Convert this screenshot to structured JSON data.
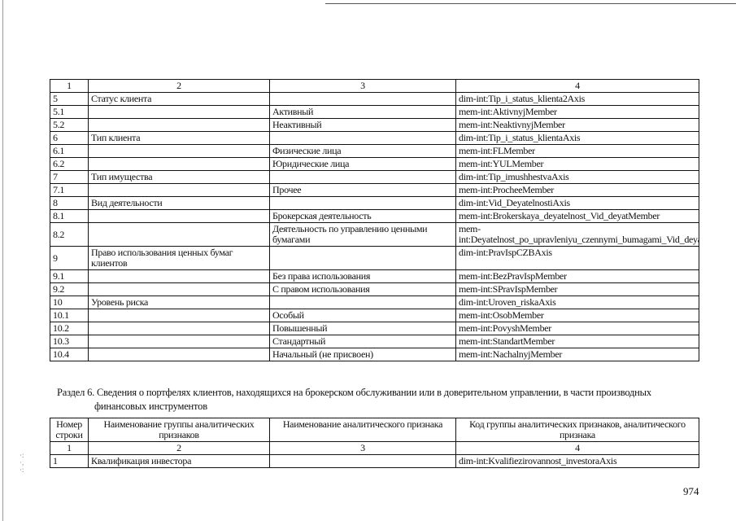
{
  "table1": {
    "header": [
      "1",
      "2",
      "3",
      "4"
    ],
    "rows": [
      [
        "5",
        "Статус клиента",
        "",
        "dim-int:Tip_i_status_klienta2Axis"
      ],
      [
        "5.1",
        "",
        "Активный",
        "mem-int:AktivnyjMember"
      ],
      [
        "5.2",
        "",
        "Неактивный",
        "mem-int:NeaktivnyjMember"
      ],
      [
        "6",
        "Тип клиента",
        "",
        "dim-int:Tip_i_status_klientaAxis"
      ],
      [
        "6.1",
        "",
        "Физические лица",
        "mem-int:FLMember"
      ],
      [
        "6.2",
        "",
        "Юридические лица",
        "mem-int:YULMember"
      ],
      [
        "7",
        "Тип имущества",
        "",
        "dim-int:Tip_imushhestvaAxis"
      ],
      [
        "7.1",
        "",
        "Прочее",
        "mem-int:ProcheeMember"
      ],
      [
        "8",
        "Вид деятельности",
        "",
        "dim-int:Vid_DeyatelnostiAxis"
      ],
      [
        "8.1",
        "",
        "Брокерская деятельность",
        "mem-int:Brokerskaya_deyatelnost_Vid_deyatMember"
      ],
      [
        "8.2",
        "",
        "Деятельность по управлению ценными бумагами",
        "mem-int:Deyatelnost_po_upravleniyu_czennymi_bumagami_Vid_deyatMember"
      ],
      [
        "9",
        "Право использования ценных бумаг клиентов",
        "",
        "dim-int:PravIspCZBAxis"
      ],
      [
        "9.1",
        "",
        "Без права использования",
        "mem-int:BezPravIspMember"
      ],
      [
        "9.2",
        "",
        "С правом использования",
        "mem-int:SPravIspMember"
      ],
      [
        "10",
        "Уровень риска",
        "",
        "dim-int:Uroven_riskaAxis"
      ],
      [
        "10.1",
        "",
        "Особый",
        "mem-int:OsobMember"
      ],
      [
        "10.2",
        "",
        "Повышенный",
        "mem-int:PovyshMember"
      ],
      [
        "10.3",
        "",
        "Стандартный",
        "mem-int:StandartMember"
      ],
      [
        "10.4",
        "",
        "Начальный (не присвоен)",
        "mem-int:NachalnyjMember"
      ]
    ]
  },
  "section": {
    "line1": "Раздел 6. Сведения о портфелях клиентов, находящихся на брокерском обслуживании или в доверительном управлении, в части производных",
    "line2": "финансовых инструментов"
  },
  "table2": {
    "columns": [
      "Номер строки",
      "Наименование группы аналитических признаков",
      "Наименование аналитического признака",
      "Код группы аналитических признаков, аналитического признака"
    ],
    "numbers": [
      "1",
      "2",
      "3",
      "4"
    ],
    "rows": [
      [
        "1",
        "Квалификация инвестора",
        "",
        "dim-int:Kvalifiezirovannost_investoraAxis"
      ]
    ]
  },
  "page_number": "974"
}
